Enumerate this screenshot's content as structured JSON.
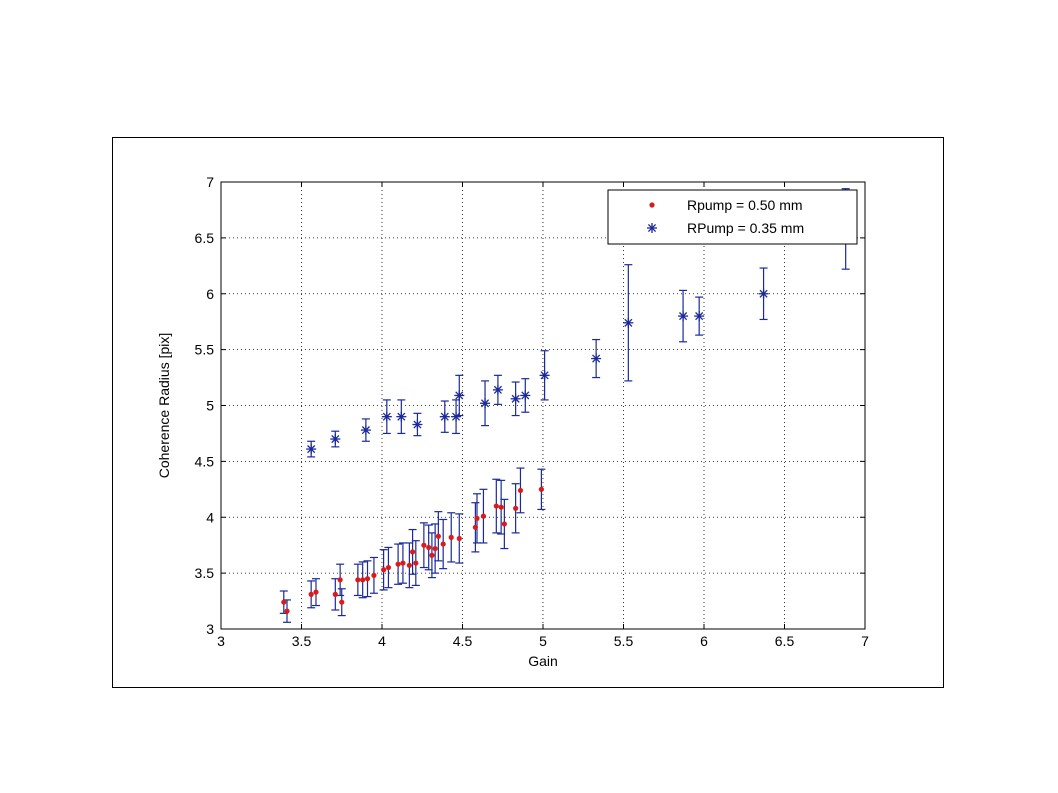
{
  "chart_data": {
    "type": "scatter",
    "xlabel": "Gain",
    "ylabel": "Coherence Radius [pix]",
    "xlim": [
      3,
      7
    ],
    "ylim": [
      3,
      7
    ],
    "xticks": [
      3,
      3.5,
      4,
      4.5,
      5,
      5.5,
      6,
      6.5,
      7
    ],
    "yticks": [
      3,
      3.5,
      4,
      4.5,
      5,
      5.5,
      6,
      6.5,
      7
    ],
    "xtick_labels": [
      "3",
      "3.5",
      "4",
      "4.5",
      "5",
      "5.5",
      "6",
      "6.5",
      "7"
    ],
    "ytick_labels": [
      "3",
      "3.5",
      "4",
      "4.5",
      "5",
      "5.5",
      "6",
      "6.5",
      "7"
    ],
    "grid": true,
    "legend_position": "top-right",
    "series": [
      {
        "name": "Rpump = 0.50 mm",
        "marker": "dot",
        "color": "#dd1a1a",
        "errorbar_color": "#1a2a9a",
        "points": [
          {
            "x": 3.39,
            "y": 3.24,
            "err": 0.1
          },
          {
            "x": 3.41,
            "y": 3.16,
            "err": 0.1
          },
          {
            "x": 3.56,
            "y": 3.31,
            "err": 0.12
          },
          {
            "x": 3.59,
            "y": 3.33,
            "err": 0.12
          },
          {
            "x": 3.71,
            "y": 3.31,
            "err": 0.14
          },
          {
            "x": 3.74,
            "y": 3.44,
            "err": 0.14
          },
          {
            "x": 3.75,
            "y": 3.24,
            "err": 0.12
          },
          {
            "x": 3.85,
            "y": 3.44,
            "err": 0.14
          },
          {
            "x": 3.88,
            "y": 3.44,
            "err": 0.16
          },
          {
            "x": 3.91,
            "y": 3.45,
            "err": 0.16
          },
          {
            "x": 3.95,
            "y": 3.48,
            "err": 0.16
          },
          {
            "x": 4.01,
            "y": 3.53,
            "err": 0.18
          },
          {
            "x": 4.04,
            "y": 3.55,
            "err": 0.18
          },
          {
            "x": 4.1,
            "y": 3.58,
            "err": 0.18
          },
          {
            "x": 4.13,
            "y": 3.59,
            "err": 0.18
          },
          {
            "x": 4.17,
            "y": 3.57,
            "err": 0.2
          },
          {
            "x": 4.19,
            "y": 3.69,
            "err": 0.2
          },
          {
            "x": 4.21,
            "y": 3.59,
            "err": 0.2
          },
          {
            "x": 4.26,
            "y": 3.75,
            "err": 0.2
          },
          {
            "x": 4.29,
            "y": 3.73,
            "err": 0.2
          },
          {
            "x": 4.31,
            "y": 3.66,
            "err": 0.2
          },
          {
            "x": 4.33,
            "y": 3.72,
            "err": 0.22
          },
          {
            "x": 4.35,
            "y": 3.83,
            "err": 0.22
          },
          {
            "x": 4.38,
            "y": 3.76,
            "err": 0.22
          },
          {
            "x": 4.43,
            "y": 3.82,
            "err": 0.22
          },
          {
            "x": 4.48,
            "y": 3.81,
            "err": 0.22
          },
          {
            "x": 4.58,
            "y": 3.91,
            "err": 0.22
          },
          {
            "x": 4.59,
            "y": 3.99,
            "err": 0.22
          },
          {
            "x": 4.63,
            "y": 4.01,
            "err": 0.24
          },
          {
            "x": 4.71,
            "y": 4.1,
            "err": 0.24
          },
          {
            "x": 4.74,
            "y": 4.09,
            "err": 0.24
          },
          {
            "x": 4.76,
            "y": 3.94,
            "err": 0.22
          },
          {
            "x": 4.83,
            "y": 4.08,
            "err": 0.22
          },
          {
            "x": 4.86,
            "y": 4.24,
            "err": 0.2
          },
          {
            "x": 4.99,
            "y": 4.25,
            "err": 0.18
          }
        ]
      },
      {
        "name": "RPump = 0.35 mm",
        "marker": "star",
        "color": "#1a2a9a",
        "errorbar_color": "#1a2a9a",
        "points": [
          {
            "x": 3.56,
            "y": 4.61,
            "err": 0.07
          },
          {
            "x": 3.71,
            "y": 4.7,
            "err": 0.07
          },
          {
            "x": 3.9,
            "y": 4.78,
            "err": 0.1
          },
          {
            "x": 4.03,
            "y": 4.9,
            "err": 0.15
          },
          {
            "x": 4.12,
            "y": 4.9,
            "err": 0.15
          },
          {
            "x": 4.22,
            "y": 4.83,
            "err": 0.1
          },
          {
            "x": 4.39,
            "y": 4.9,
            "err": 0.14
          },
          {
            "x": 4.46,
            "y": 4.9,
            "err": 0.15
          },
          {
            "x": 4.48,
            "y": 5.09,
            "err": 0.18
          },
          {
            "x": 4.64,
            "y": 5.02,
            "err": 0.2
          },
          {
            "x": 4.72,
            "y": 5.14,
            "err": 0.13
          },
          {
            "x": 4.83,
            "y": 5.06,
            "err": 0.15
          },
          {
            "x": 4.89,
            "y": 5.09,
            "err": 0.15
          },
          {
            "x": 5.01,
            "y": 5.27,
            "err": 0.22
          },
          {
            "x": 5.33,
            "y": 5.42,
            "err": 0.17
          },
          {
            "x": 5.53,
            "y": 5.74,
            "err": 0.52
          },
          {
            "x": 5.87,
            "y": 5.8,
            "err": 0.23
          },
          {
            "x": 5.97,
            "y": 5.8,
            "err": 0.17
          },
          {
            "x": 6.37,
            "y": 6.0,
            "err": 0.23
          },
          {
            "x": 6.88,
            "y": 6.58,
            "err": 0.36
          }
        ]
      }
    ]
  }
}
